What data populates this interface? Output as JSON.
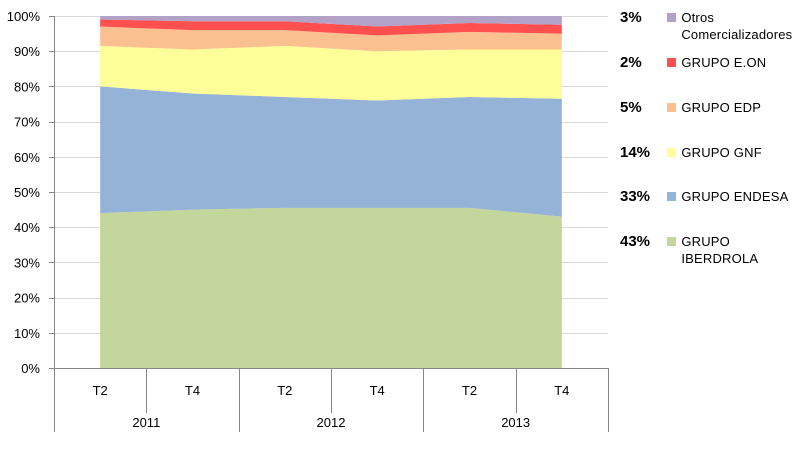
{
  "chart_data": {
    "type": "area",
    "stacked": true,
    "normalized": true,
    "categories": [
      "T2",
      "T4",
      "T2",
      "T4",
      "T2",
      "T4"
    ],
    "groups": [
      {
        "label": "2011",
        "span": 2
      },
      {
        "label": "2012",
        "span": 2
      },
      {
        "label": "2013",
        "span": 2
      }
    ],
    "y_ticks": [
      "0%",
      "10%",
      "20%",
      "30%",
      "40%",
      "50%",
      "60%",
      "70%",
      "80%",
      "90%",
      "100%"
    ],
    "ylim": [
      0,
      100
    ],
    "grid": true,
    "legend_position": "right",
    "series": [
      {
        "name": "GRUPO IBERDROLA",
        "color": "#C3D69B",
        "share_label": "43%",
        "values": [
          44,
          45,
          45.5,
          45.5,
          45.5,
          43
        ]
      },
      {
        "name": "GRUPO ENDESA",
        "color": "#95B3D7",
        "share_label": "33%",
        "values": [
          36,
          33,
          31.5,
          30.5,
          31.5,
          33.5
        ]
      },
      {
        "name": "GRUPO GNF",
        "color": "#FFFF99",
        "share_label": "14%",
        "values": [
          11.5,
          12.5,
          14.5,
          14,
          13.5,
          14
        ]
      },
      {
        "name": "GRUPO EDP",
        "color": "#FAC090",
        "share_label": "5%",
        "values": [
          5.5,
          5.5,
          4.5,
          4.5,
          5,
          4.5
        ]
      },
      {
        "name": "GRUPO E.ON",
        "color": "#FF5050",
        "share_label": "2%",
        "values": [
          2,
          2.5,
          2.5,
          2.5,
          2.5,
          2.5
        ]
      },
      {
        "name": "Otros\nComercializadores",
        "color": "#B3A2C7",
        "share_label": "3%",
        "values": [
          1,
          1.5,
          1.5,
          3,
          2,
          2.5
        ]
      }
    ]
  }
}
